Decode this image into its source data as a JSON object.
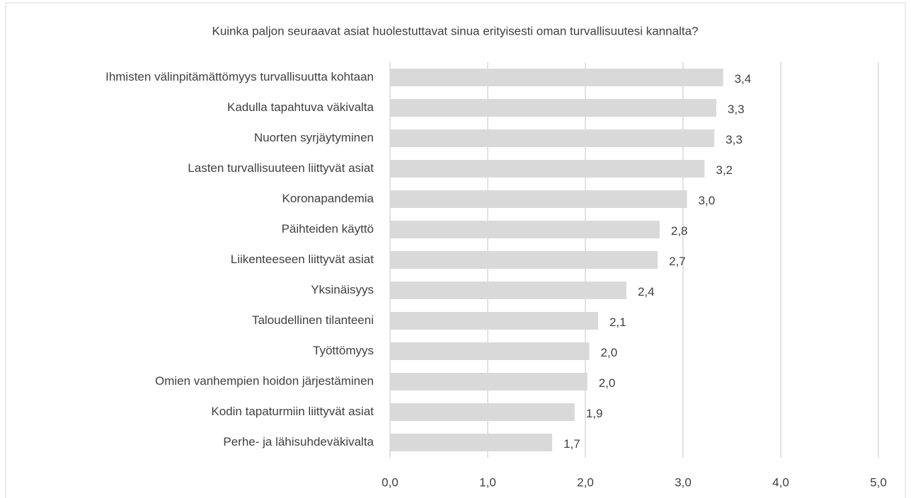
{
  "chart_data": {
    "type": "hbar",
    "title": "Kuinka paljon seuraavat asiat huolestuttavat sinua erityisesti oman turvallisuutesi kannalta?",
    "categories": [
      "Ihmisten välinpitämättömyys turvallisuutta kohtaan",
      "Kadulla tapahtuva väkivalta",
      "Nuorten syrjäytyminen",
      "Lasten turvallisuuteen liittyvät asiat",
      "Koronapandemia",
      "Päihteiden käyttö",
      "Liikenteeseen liittyvät asiat",
      "Yksinäisyys",
      "Taloudellinen tilanteeni",
      "Työttömyys",
      "Omien vanhempien hoidon järjestäminen",
      "Kodin tapaturmiin liittyvät asiat",
      "Perhe- ja lähisuhdeväkivalta"
    ],
    "values": [
      3.41,
      3.34,
      3.32,
      3.22,
      3.04,
      2.76,
      2.74,
      2.42,
      2.13,
      2.04,
      2.02,
      1.89,
      1.66
    ],
    "value_labels": [
      "3,4",
      "3,3",
      "3,3",
      "3,2",
      "3,0",
      "2,8",
      "2,7",
      "2,4",
      "2,1",
      "2,0",
      "2,0",
      "1,9",
      "1,7"
    ],
    "color": "#d9d9d9",
    "xlim": [
      0,
      5
    ],
    "xticks": [
      {
        "value": 0,
        "label": "0,0"
      },
      {
        "value": 1,
        "label": "1,0"
      },
      {
        "value": 2,
        "label": "2,0"
      },
      {
        "value": 3,
        "label": "3,0"
      },
      {
        "value": 4,
        "label": "4,0"
      },
      {
        "value": 5,
        "label": "5,0"
      }
    ],
    "grid": true
  }
}
